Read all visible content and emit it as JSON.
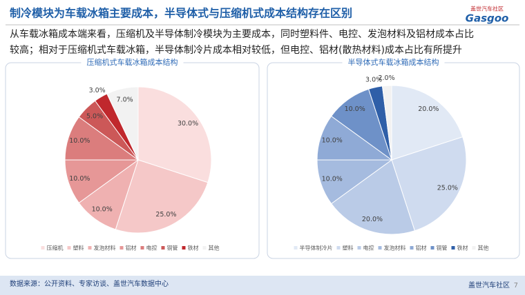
{
  "header": {
    "title": "制冷模块为车载冰箱主要成本，半导体式与压缩机式成本结构存在区别",
    "logo_cn": "盖世汽车社区",
    "logo_en": "Gasgoo"
  },
  "summary": [
    "从车载冰箱成本端来看，压缩机及半导体制冷模块为主要成本，同时塑料件、电控、发泡材料及铝材成本占比",
    "较高；相对于压缩机式车载冰箱，半导体制冷片成本相对较低，但电控、铝材(散热材料)成本占比有所提升"
  ],
  "chart_data": [
    {
      "type": "pie",
      "title": "压缩机式车载冰箱成本结构",
      "categories": [
        "压缩机",
        "塑料",
        "发泡材料",
        "铝材",
        "电控",
        "铜管",
        "铁材",
        "其他"
      ],
      "values": [
        30,
        25,
        10,
        10,
        10,
        5,
        3,
        7
      ],
      "value_labels": [
        "30.0%",
        "25.0%",
        "10.0%",
        "10.0%",
        "10.0%",
        "5.0%",
        "3.0%",
        "7.0%"
      ],
      "colors": [
        "#fadede",
        "#f5c8c8",
        "#efb1b1",
        "#e69797",
        "#db7d7d",
        "#cc5858",
        "#c0282d",
        "#f2f2f2"
      ]
    },
    {
      "type": "pie",
      "title": "半导体式车载冰箱成本结构",
      "categories": [
        "半导体制冷片",
        "塑料",
        "电控",
        "发泡材料",
        "铝材",
        "铜管",
        "铁材",
        "其他"
      ],
      "values": [
        20,
        25,
        20,
        10,
        10,
        10,
        3,
        2
      ],
      "value_labels": [
        "20.0%",
        "25.0%",
        "20.0%",
        "10.0%",
        "10.0%",
        "10.0%",
        "3.0%",
        "2.0%"
      ],
      "colors": [
        "#e1e9f5",
        "#cfdbef",
        "#bacbe7",
        "#a5bbdf",
        "#8faad6",
        "#6e91c8",
        "#2f5fa8",
        "#f2f2f2"
      ]
    }
  ],
  "footer": {
    "source": "数据来源：公开资料、专家访谈、盖世汽车数据中心",
    "brand": "盖世汽车社区",
    "page": "7"
  }
}
